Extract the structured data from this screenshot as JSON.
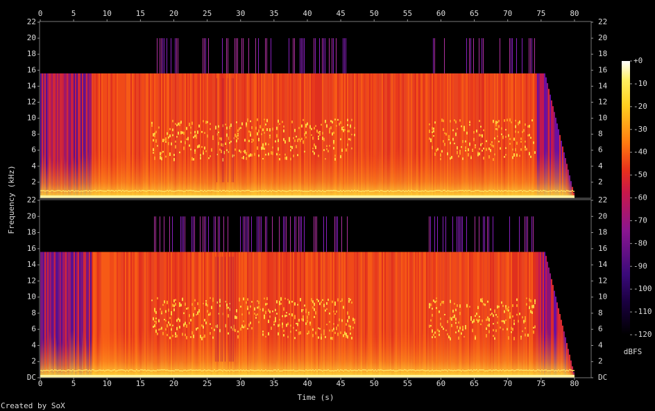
{
  "chart_data": [
    {
      "type": "spectrogram",
      "ylabel": "Frequency (kHz)",
      "xlim": [
        0,
        82.5
      ],
      "xticks": [
        0,
        5,
        10,
        15,
        20,
        25,
        30,
        35,
        40,
        45,
        50,
        55,
        60,
        65,
        70,
        75,
        80
      ],
      "ylim": [
        0,
        22
      ],
      "yticks": [
        2,
        4,
        6,
        8,
        10,
        12,
        14,
        16,
        18,
        20,
        22
      ]
    },
    {
      "type": "spectrogram",
      "xlabel": "Time (s)",
      "xlim": [
        0,
        82.5
      ],
      "xticks": [
        0,
        5,
        10,
        15,
        20,
        25,
        30,
        35,
        40,
        45,
        50,
        55,
        60,
        65,
        70,
        75,
        80
      ],
      "ylim": [
        0,
        22
      ],
      "yticks": [
        {
          "value": 0,
          "label": "DC"
        },
        2,
        4,
        6,
        8,
        10,
        12,
        14,
        16,
        18,
        20,
        22
      ]
    }
  ],
  "colorbar": {
    "label": "dBFS",
    "lim": [
      -120,
      0
    ],
    "ticks": [
      {
        "value": 0,
        "label": "+0"
      },
      -10,
      -20,
      -30,
      -40,
      -50,
      -60,
      -70,
      -80,
      -90,
      -100,
      -110,
      -120
    ]
  },
  "footer": "Created by SoX"
}
